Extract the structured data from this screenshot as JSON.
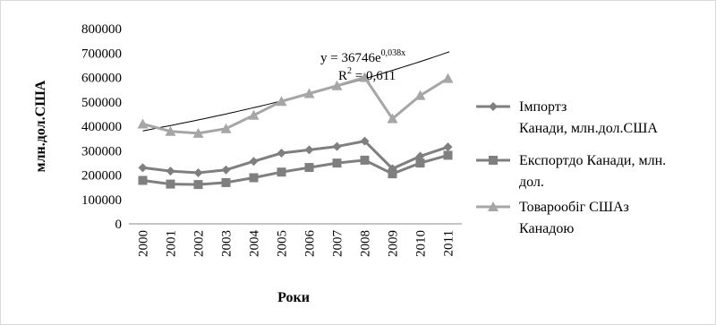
{
  "chart_data": {
    "type": "line",
    "title": "",
    "xlabel": "Роки",
    "ylabel": "млн.дол.США",
    "ylim": [
      0,
      800000
    ],
    "yticks": [
      0,
      100000,
      200000,
      300000,
      400000,
      500000,
      600000,
      700000,
      800000
    ],
    "ytick_labels": [
      "0",
      "100000",
      "200000",
      "300000",
      "400000",
      "500000",
      "600000",
      "700000",
      "800000"
    ],
    "categories": [
      "2000",
      "2001",
      "2002",
      "2003",
      "2004",
      "2005",
      "2006",
      "2007",
      "2008",
      "2009",
      "2010",
      "2011"
    ],
    "grid": false,
    "legend_position": "right",
    "series": [
      {
        "name": "Імпорт з Канади, млн.дол.США",
        "legend_lines": [
          "Імпортз",
          "Канади, млн.дол.США"
        ],
        "marker": "diamond",
        "color": "#7f7f7f",
        "values": [
          230000,
          216000,
          209000,
          221000,
          256000,
          290000,
          303000,
          317000,
          339000,
          226000,
          277000,
          315000
        ]
      },
      {
        "name": "Експорт до Канади, млн. дол.",
        "legend_lines": [
          "Експортдо Канади, млн.",
          "дол."
        ],
        "marker": "square",
        "color": "#7f7f7f",
        "values": [
          178000,
          163000,
          161000,
          169000,
          189000,
          212000,
          231000,
          249000,
          261000,
          205000,
          249000,
          281000
        ]
      },
      {
        "name": "Товарообіг США з Канадою",
        "legend_lines": [
          "Товарообіг СШАз",
          "Канадою"
        ],
        "marker": "triangle",
        "color": "#a6a6a6",
        "values": [
          409000,
          379000,
          371000,
          390000,
          445000,
          502000,
          534000,
          566000,
          600000,
          431000,
          526000,
          596000
        ]
      }
    ],
    "trendline": {
      "type": "exponential",
      "color": "#000000",
      "coefficient": 36746,
      "rate": 0.038,
      "x_start": 0,
      "x_end": 15,
      "equation_main": "y = 36746e",
      "equation_exp": "0,038x",
      "r2_label": "R",
      "r2_sup": "2",
      "r2_value": " = 0,611"
    }
  }
}
